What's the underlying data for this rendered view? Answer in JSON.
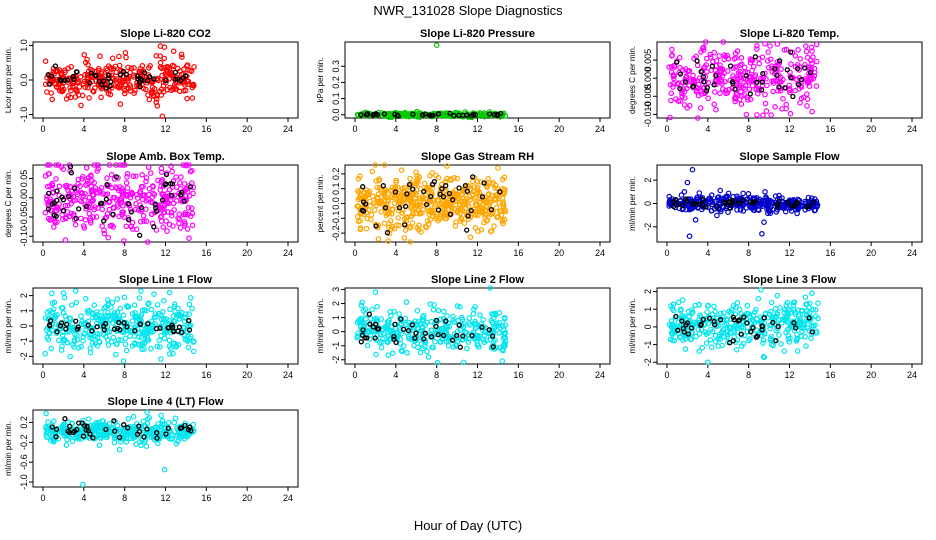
{
  "figure": {
    "title": "NWR_131028  Slope Diagnostics",
    "xlabel": "Hour of Day (UTC)"
  },
  "chart_data": [
    {
      "type": "scatter",
      "title": "Slope Li-820 CO2",
      "ylabel": "Licor ppm per min.",
      "xlim": [
        0,
        24
      ],
      "xticks": [
        "0",
        "4",
        "8",
        "12",
        "16",
        "20",
        "24"
      ],
      "ylim": [
        -1.1,
        1.1
      ],
      "yticks": [
        {
          "v": -1,
          "label": "-1.0"
        },
        {
          "v": 0,
          "label": "0.0"
        },
        {
          "v": 1,
          "label": "1.0"
        }
      ],
      "color": "#ff0000",
      "spread": 0.28,
      "center": 0.0,
      "outliers": [
        {
          "x": 11.7,
          "y": -1.05
        },
        {
          "x": 11.2,
          "y": -0.75
        },
        {
          "x": 11.5,
          "y": 0.98
        },
        {
          "x": 11.9,
          "y": 0.95
        },
        {
          "x": 11.1,
          "y": 0.7
        }
      ],
      "black_spread": 0.15,
      "x_range": [
        0.2,
        14.8
      ],
      "n": 340,
      "n_black": 45
    },
    {
      "type": "scatter",
      "title": "Slope Li-820 Pressure",
      "ylabel": "kPa per min.",
      "xlim": [
        0,
        24
      ],
      "xticks": [
        "0",
        "4",
        "8",
        "12",
        "16",
        "20",
        "24"
      ],
      "ylim": [
        -0.02,
        0.45
      ],
      "yticks": [
        {
          "v": 0.0,
          "label": "0.0"
        },
        {
          "v": 0.1,
          "label": "0.1"
        },
        {
          "v": 0.2,
          "label": "0.2"
        },
        {
          "v": 0.3,
          "label": "0.3"
        }
      ],
      "color": "#00cc00",
      "spread": 0.006,
      "center": 0.0,
      "outliers": [
        {
          "x": 8.0,
          "y": 0.43
        }
      ],
      "black_spread": 0.004,
      "x_range": [
        0.2,
        14.8
      ],
      "n": 260,
      "n_black": 40
    },
    {
      "type": "scatter",
      "title": "Slope Li-820 Temp.",
      "ylabel": "degrees C per min.",
      "xlim": [
        0,
        24
      ],
      "xticks": [
        "0",
        "4",
        "8",
        "12",
        "16",
        "20",
        "24"
      ],
      "ylim": [
        -0.011,
        0.01
      ],
      "yticks": [
        {
          "v": -0.01,
          "label": "-0.010"
        },
        {
          "v": -0.005,
          "label": "-0.005"
        },
        {
          "v": 0.0,
          "label": "0.000"
        },
        {
          "v": 0.005,
          "label": "0.005"
        }
      ],
      "color": "#ff00ff",
      "spread": 0.0042,
      "center": 0.0,
      "outliers": [
        {
          "x": 9.6,
          "y": 0.0095
        },
        {
          "x": 10.2,
          "y": -0.0102
        },
        {
          "x": 12.1,
          "y": -0.0098
        }
      ],
      "black_spread": 0.003,
      "x_range": [
        0.2,
        14.8
      ],
      "n": 340,
      "n_black": 40
    },
    {
      "type": "scatter",
      "title": "Slope Amb. Box Temp.",
      "ylabel": "degrees C per min.",
      "xlim": [
        0,
        24
      ],
      "xticks": [
        "0",
        "4",
        "8",
        "12",
        "16",
        "20",
        "24"
      ],
      "ylim": [
        -0.115,
        0.085
      ],
      "yticks": [
        {
          "v": -0.1,
          "label": "-0.10"
        },
        {
          "v": -0.05,
          "label": "-0.05"
        },
        {
          "v": 0.0,
          "label": "0.00"
        },
        {
          "v": 0.05,
          "label": "0.05"
        }
      ],
      "color": "#ff00ff",
      "spread": 0.048,
      "center": 0.0,
      "outliers": [
        {
          "x": 1.8,
          "y": 0.08
        },
        {
          "x": 2.2,
          "y": -0.11
        },
        {
          "x": 14.3,
          "y": -0.105
        }
      ],
      "black_spread": 0.035,
      "x_range": [
        0.2,
        14.8
      ],
      "n": 380,
      "n_black": 45
    },
    {
      "type": "scatter",
      "title": "Slope Gas Stream RH",
      "ylabel": "percent per min.",
      "xlim": [
        0,
        24
      ],
      "xticks": [
        "0",
        "4",
        "8",
        "12",
        "16",
        "20",
        "24"
      ],
      "ylim": [
        -0.26,
        0.26
      ],
      "yticks": [
        {
          "v": -0.2,
          "label": "-0.2"
        },
        {
          "v": -0.1,
          "label": "-0.1"
        },
        {
          "v": 0.0,
          "label": "0.0"
        },
        {
          "v": 0.1,
          "label": "0.1"
        },
        {
          "v": 0.2,
          "label": "0.2"
        }
      ],
      "color": "#ffa500",
      "spread": 0.09,
      "center": 0.0,
      "outliers": [
        {
          "x": 2.3,
          "y": -0.24
        },
        {
          "x": 14.0,
          "y": 0.24
        }
      ],
      "black_spread": 0.09,
      "x_range": [
        0.2,
        14.8
      ],
      "n": 520,
      "n_black": 40
    },
    {
      "type": "scatter",
      "title": "Slope Sample Flow",
      "ylabel": "ml/min per min.",
      "xlim": [
        0,
        24
      ],
      "xticks": [
        "0",
        "4",
        "8",
        "12",
        "16",
        "20",
        "24"
      ],
      "ylim": [
        -3.3,
        3.3
      ],
      "yticks": [
        {
          "v": -2,
          "label": "-2"
        },
        {
          "v": 0,
          "label": "0"
        },
        {
          "v": 2,
          "label": "2"
        }
      ],
      "color": "#0000cc",
      "spread": 0.35,
      "center": 0.0,
      "outliers": [
        {
          "x": 2.5,
          "y": 2.9
        },
        {
          "x": 2.0,
          "y": 1.8
        },
        {
          "x": 1.7,
          "y": 1.0
        },
        {
          "x": 2.2,
          "y": -2.8
        },
        {
          "x": 9.3,
          "y": -2.6
        },
        {
          "x": 9.5,
          "y": -1.6
        },
        {
          "x": 9.6,
          "y": 1.0
        },
        {
          "x": 2.8,
          "y": -1.4
        }
      ],
      "black_spread": 0.2,
      "x_range": [
        0.2,
        14.8
      ],
      "n": 360,
      "n_black": 40
    },
    {
      "type": "scatter",
      "title": "Slope Line 1 Flow",
      "ylabel": "ml/min per min.",
      "xlim": [
        0,
        24
      ],
      "xticks": [
        "0",
        "4",
        "8",
        "12",
        "16",
        "20",
        "24"
      ],
      "ylim": [
        -2.5,
        2.5
      ],
      "yticks": [
        {
          "v": -2,
          "label": "-2"
        },
        {
          "v": -1,
          "label": "-1"
        },
        {
          "v": 0,
          "label": "0"
        },
        {
          "v": 1,
          "label": "1"
        },
        {
          "v": 2,
          "label": "2"
        }
      ],
      "color": "#00e5ee",
      "spread": 0.8,
      "center": 0.0,
      "outliers": [
        {
          "x": 3.2,
          "y": 2.3
        },
        {
          "x": 12.4,
          "y": 2.2
        },
        {
          "x": 7.9,
          "y": -2.3
        }
      ],
      "black_spread": 0.2,
      "x_range": [
        0.2,
        14.8
      ],
      "n": 380,
      "n_black": 40
    },
    {
      "type": "scatter",
      "title": "Slope Line 2 Flow",
      "ylabel": "ml/min per min.",
      "xlim": [
        0,
        24
      ],
      "xticks": [
        "0",
        "4",
        "8",
        "12",
        "16",
        "20",
        "24"
      ],
      "ylim": [
        -2.3,
        3.1
      ],
      "yticks": [
        {
          "v": -2,
          "label": "-2"
        },
        {
          "v": -1,
          "label": "-1"
        },
        {
          "v": 0,
          "label": "0"
        },
        {
          "v": 1,
          "label": "1"
        },
        {
          "v": 2,
          "label": "2"
        },
        {
          "v": 3,
          "label": "3"
        }
      ],
      "color": "#00e5ee",
      "spread": 0.75,
      "center": 0.0,
      "outliers": [
        {
          "x": 2.0,
          "y": 2.8
        },
        {
          "x": 8.1,
          "y": -2.2
        }
      ],
      "black_spread": 0.5,
      "x_range": [
        0.2,
        14.8
      ],
      "n": 360,
      "n_black": 40
    },
    {
      "type": "scatter",
      "title": "Slope Line 3 Flow",
      "ylabel": "ml/min per min.",
      "xlim": [
        0,
        24
      ],
      "xticks": [
        "0",
        "4",
        "8",
        "12",
        "16",
        "20",
        "24"
      ],
      "ylim": [
        -2.1,
        2.2
      ],
      "yticks": [
        {
          "v": -2,
          "label": "-2"
        },
        {
          "v": -1,
          "label": "-1"
        },
        {
          "v": 0,
          "label": "0"
        },
        {
          "v": 1,
          "label": "1"
        },
        {
          "v": 2,
          "label": "2"
        }
      ],
      "color": "#00e5ee",
      "spread": 0.65,
      "center": 0.1,
      "outliers": [
        {
          "x": 9.2,
          "y": 2.1
        },
        {
          "x": 4.0,
          "y": -2.0
        },
        {
          "x": 14.2,
          "y": 1.9
        }
      ],
      "black_spread": 0.4,
      "x_range": [
        0.2,
        14.8
      ],
      "n": 360,
      "n_black": 40
    },
    {
      "type": "scatter",
      "title": "Slope Line 4 (LT) Flow",
      "ylabel": "ml/min per min.",
      "xlim": [
        0,
        24
      ],
      "xticks": [
        "0",
        "4",
        "8",
        "12",
        "16",
        "20",
        "24"
      ],
      "ylim": [
        -1.1,
        0.45
      ],
      "yticks": [
        {
          "v": -1.0,
          "label": "-1.0"
        },
        {
          "v": -0.6,
          "label": "-0.6"
        },
        {
          "v": -0.2,
          "label": "-0.2"
        },
        {
          "v": 0.2,
          "label": "0.2"
        }
      ],
      "color": "#00e5ee",
      "spread": 0.11,
      "center": 0.02,
      "outliers": [
        {
          "x": 0.3,
          "y": 0.38
        },
        {
          "x": 10.2,
          "y": 0.4
        },
        {
          "x": 3.9,
          "y": -1.05
        },
        {
          "x": 11.9,
          "y": -0.75
        },
        {
          "x": 7.5,
          "y": -0.35
        }
      ],
      "black_spread": 0.11,
      "x_range": [
        0.2,
        14.8
      ],
      "n": 340,
      "n_black": 40
    }
  ]
}
